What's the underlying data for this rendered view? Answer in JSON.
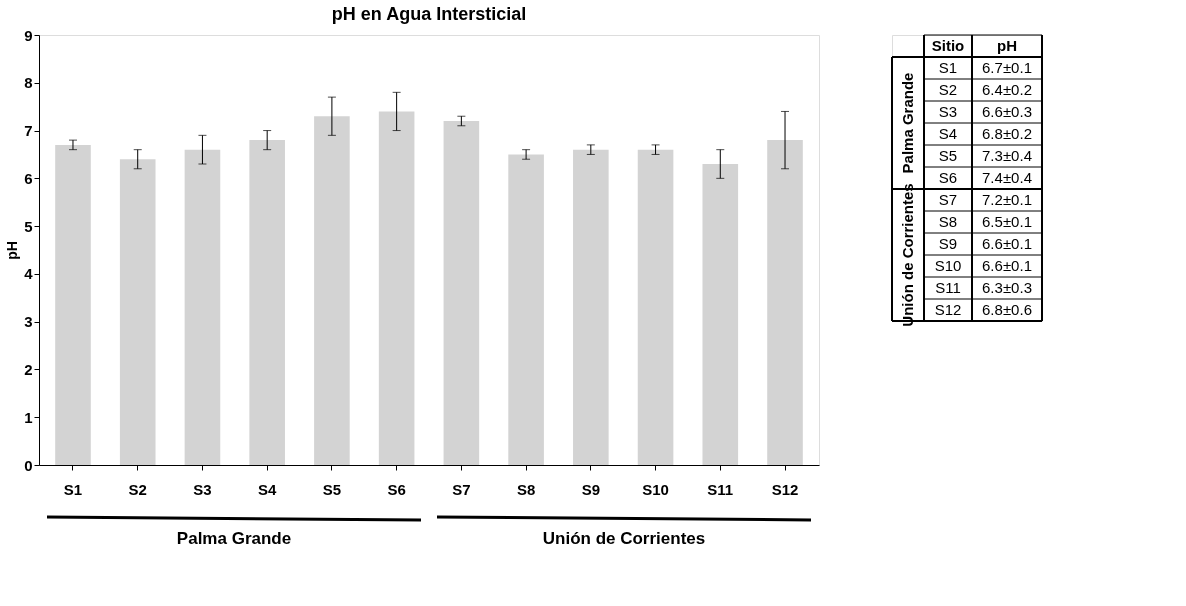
{
  "chart_data": {
    "type": "bar",
    "title": "pH en Agua Intersticial",
    "ylabel": "pH",
    "categories": [
      "S1",
      "S2",
      "S3",
      "S4",
      "S5",
      "S6",
      "S7",
      "S8",
      "S9",
      "S10",
      "S11",
      "S12"
    ],
    "values": [
      6.7,
      6.4,
      6.6,
      6.8,
      7.3,
      7.4,
      7.2,
      6.5,
      6.6,
      6.6,
      6.3,
      6.8
    ],
    "errors": [
      0.1,
      0.2,
      0.3,
      0.2,
      0.4,
      0.4,
      0.1,
      0.1,
      0.1,
      0.1,
      0.3,
      0.6
    ],
    "color": "#d3d3d3",
    "ylim": [
      0,
      9
    ],
    "yticks": [
      0,
      1,
      2,
      3,
      4,
      5,
      6,
      7,
      8,
      9
    ],
    "grid": false,
    "annotations": [
      "Palma Grande",
      "Unión de Corrientes",
      "Sitio",
      "pH",
      "6.7±0.1",
      "6.4±0.2",
      "6.6±0.3",
      "6.8±0.2",
      "7.3±0.4",
      "7.4±0.4",
      "7.2±0.1",
      "6.5±0.1",
      "6.6±0.1",
      "6.6±0.1",
      "6.3±0.3",
      "6.8±0.6"
    ]
  }
}
